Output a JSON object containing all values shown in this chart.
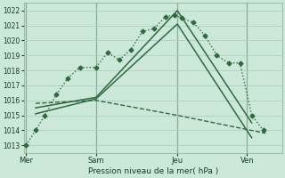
{
  "background_color": "#cce8d8",
  "grid_color": "#aaccbb",
  "line_color": "#2d6a3f",
  "title": "Pression niveau de la mer( hPa )",
  "ylim": [
    1012.5,
    1022.5
  ],
  "yticks": [
    1013,
    1014,
    1015,
    1016,
    1017,
    1018,
    1019,
    1020,
    1021,
    1022
  ],
  "xlim": [
    -0.1,
    11.0
  ],
  "xtick_labels": [
    "Mer",
    "Sam",
    "Jeu",
    "Ven"
  ],
  "xtick_positions": [
    0,
    3.0,
    6.5,
    9.5
  ],
  "vlines": [
    0,
    3.0,
    6.5,
    9.5
  ],
  "series": [
    {
      "x": [
        0,
        0.4,
        0.8,
        1.3,
        1.8,
        2.3,
        3.0,
        3.5,
        4.0,
        4.5,
        5.0,
        5.5,
        6.0,
        6.4,
        6.7,
        7.2,
        7.7,
        8.2,
        8.7,
        9.2,
        9.7,
        10.2
      ],
      "y": [
        1013.0,
        1014.0,
        1015.0,
        1016.4,
        1017.5,
        1018.2,
        1018.2,
        1019.2,
        1018.7,
        1019.4,
        1020.6,
        1020.8,
        1021.6,
        1021.7,
        1021.5,
        1021.2,
        1020.3,
        1019.0,
        1018.5,
        1018.5,
        1015.0,
        1014.0
      ],
      "linestyle": "dotted",
      "marker": "D",
      "markersize": 2.5,
      "linewidth": 1.0
    },
    {
      "x": [
        0.4,
        3.0,
        6.5,
        9.7
      ],
      "y": [
        1015.1,
        1016.1,
        1021.1,
        1013.5
      ],
      "linestyle": "solid",
      "marker": null,
      "markersize": 0,
      "linewidth": 1.1
    },
    {
      "x": [
        0.4,
        3.0,
        6.5,
        9.7
      ],
      "y": [
        1015.5,
        1016.2,
        1022.0,
        1014.5
      ],
      "linestyle": "solid",
      "marker": null,
      "markersize": 0,
      "linewidth": 1.1
    },
    {
      "x": [
        0.4,
        3.0,
        6.5,
        10.3
      ],
      "y": [
        1015.8,
        1016.0,
        1015.0,
        1013.8
      ],
      "linestyle": "dashed",
      "marker": null,
      "markersize": 0,
      "linewidth": 1.0
    }
  ]
}
